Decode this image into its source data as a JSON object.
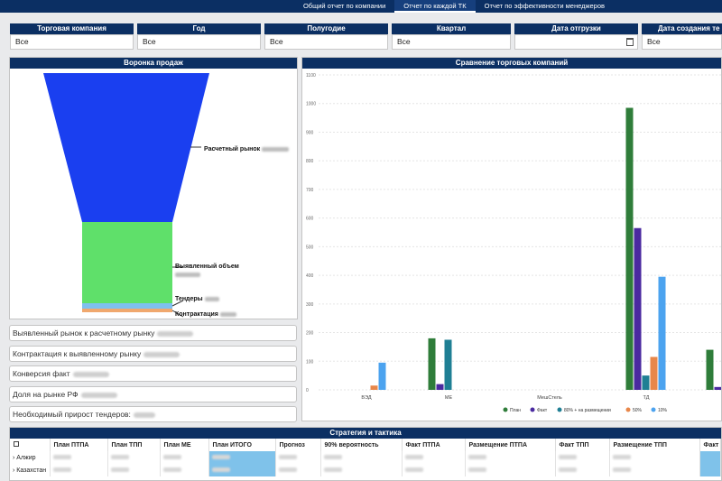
{
  "nav": {
    "tabs": [
      {
        "label": "Общий отчет по компании"
      },
      {
        "label": "Отчет по каждой ТК"
      },
      {
        "label": "Отчет по эффективности менеджеров"
      }
    ]
  },
  "filters": [
    {
      "label": "Торговая компания",
      "value": "Все"
    },
    {
      "label": "Год",
      "value": "Все"
    },
    {
      "label": "Полугодие",
      "value": "Все"
    },
    {
      "label": "Квартал",
      "value": "Все"
    },
    {
      "label": "Дата отгрузки",
      "value": ""
    },
    {
      "label": "Дата создания те",
      "value": "Все"
    }
  ],
  "funnel": {
    "title": "Воронка продаж",
    "labels": {
      "market": "Расчетный рынок",
      "volume": "Выявленный объем",
      "tenders": "Тендеры",
      "contract": "Контрактация"
    },
    "colors": {
      "market": "#1a3ff0",
      "volume": "#5fe06a",
      "tenders": "#7fc0ef",
      "contract": "#f0a86e"
    }
  },
  "kpis": [
    {
      "label": "Выявленный рынок к расчетному рынку"
    },
    {
      "label": "Контрактация к выявленному рынку"
    },
    {
      "label": "Конверсия факт"
    },
    {
      "label": "Доля на рынке РФ"
    },
    {
      "label": "Необходимый прирост тендеров:"
    }
  ],
  "comparison": {
    "title": "Сравнение торговых компаний"
  },
  "chart_data": {
    "type": "bar",
    "categories": [
      "ВЭД",
      "МЕ",
      "МешСтель",
      "ТД",
      ""
    ],
    "series": [
      {
        "name": "План",
        "color": "#2f7d3a",
        "values": [
          0,
          180,
          0,
          985,
          140
        ]
      },
      {
        "name": "Факт",
        "color": "#4a2aa0",
        "values": [
          0,
          20,
          0,
          565,
          10
        ]
      },
      {
        "name": "80% + на размещении",
        "color": "#1f7f94",
        "values": [
          0,
          175,
          0,
          50,
          0
        ]
      },
      {
        "name": "50%",
        "color": "#e8874a",
        "values": [
          15,
          0,
          0,
          115,
          0
        ]
      },
      {
        "name": "10%",
        "color": "#4ca3ef",
        "values": [
          95,
          0,
          0,
          395,
          0
        ]
      }
    ],
    "ylim": [
      0,
      1100
    ],
    "yticks": [
      "0",
      "100",
      "200",
      "300",
      "400",
      "500",
      "600",
      "700",
      "800",
      "900",
      "1000",
      "1100"
    ],
    "legend_position": "bottom"
  },
  "strategy": {
    "title": "Стратегия и тактика",
    "columns": [
      "План ПТПА",
      "План ТПП",
      "План МЕ",
      "План ИТОГО",
      "Прогноз",
      "90% вероятность",
      "Факт ПТПА",
      "Размещение ПТПА",
      "Факт ТПП",
      "Размещение ТПП",
      "Факт"
    ],
    "rows": [
      {
        "name": "Алжир"
      },
      {
        "name": "Казахстан"
      }
    ]
  }
}
